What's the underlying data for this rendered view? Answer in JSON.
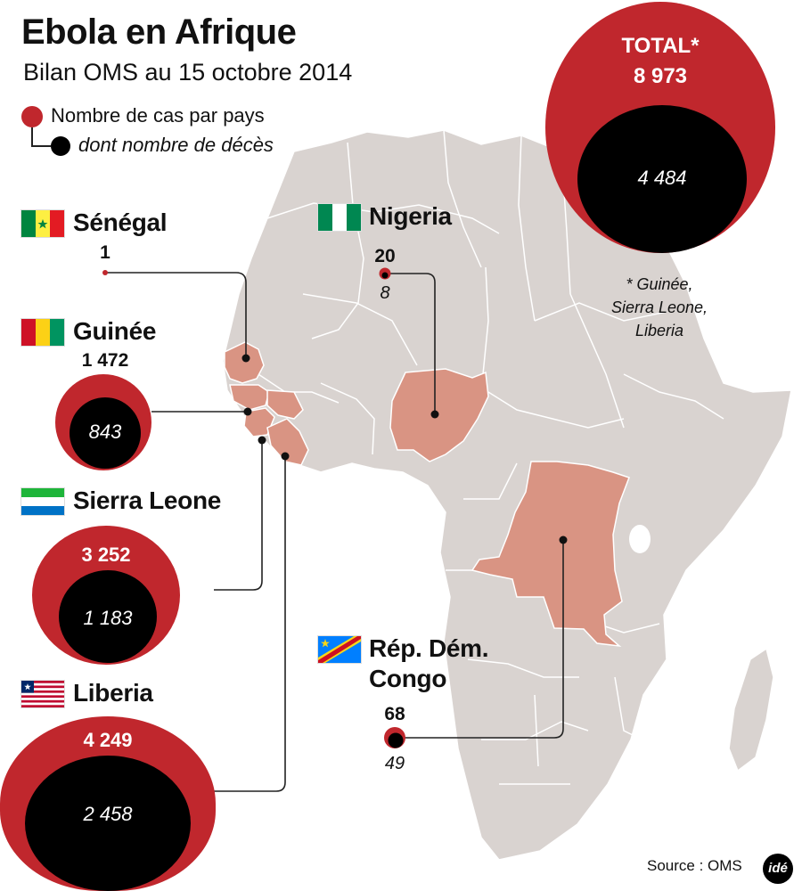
{
  "header": {
    "title": "Ebola en Afrique",
    "subtitle": "Bilan OMS au 15 octobre 2014"
  },
  "legend": {
    "cases_label": "Nombre de cas par pays",
    "deaths_label": "dont nombre de décès"
  },
  "total": {
    "label": "TOTAL*",
    "cases": "8 973",
    "deaths": "4 484",
    "note_line1": "* Guinée,",
    "note_line2": "Sierra Leone,",
    "note_line3": "Liberia"
  },
  "countries": {
    "senegal": {
      "name": "Sénégal",
      "cases": "1"
    },
    "guinee": {
      "name": "Guinée",
      "cases": "1 472",
      "deaths": "843"
    },
    "sierra_leone": {
      "name": "Sierra Leone",
      "cases": "3 252",
      "deaths": "1 183"
    },
    "liberia": {
      "name": "Liberia",
      "cases": "4 249",
      "deaths": "2 458"
    },
    "nigeria": {
      "name": "Nigeria",
      "cases": "20",
      "deaths": "8"
    },
    "rdc": {
      "name_line1": "Rép. Dém.",
      "name_line2": "Congo",
      "cases": "68",
      "deaths": "49"
    }
  },
  "footer": {
    "source": "Source : OMS",
    "logo": "idé"
  },
  "colors": {
    "cases": "#c0272d",
    "deaths": "#000000",
    "land": "#d9d3d0",
    "affected_country": "#d99483",
    "border": "#ffffff"
  }
}
